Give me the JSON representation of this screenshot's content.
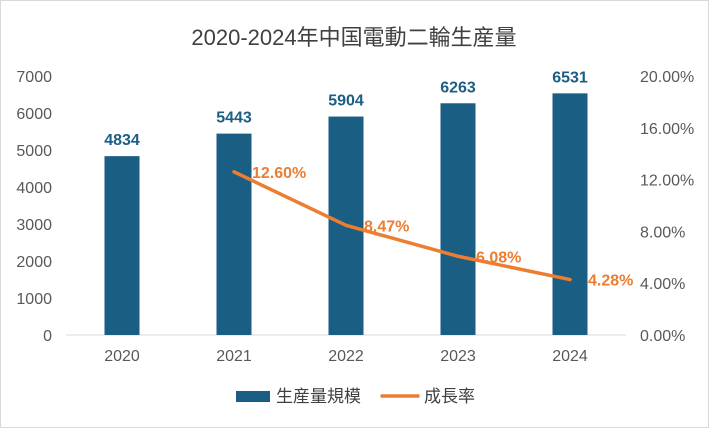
{
  "chart_data": {
    "type": "bar",
    "title": "2020-2024年中国電動二輪生産量",
    "categories": [
      "2020",
      "2021",
      "2022",
      "2023",
      "2024"
    ],
    "series": [
      {
        "name": "生産量規模",
        "type": "bar",
        "axis": "left",
        "color": "#1B5E84",
        "values": [
          4834,
          5443,
          5904,
          6263,
          6531
        ]
      },
      {
        "name": "成長率",
        "type": "line",
        "axis": "right",
        "color": "#ED7D31",
        "values": [
          null,
          12.6,
          8.47,
          6.08,
          4.28
        ]
      }
    ],
    "y_left": {
      "min": 0,
      "max": 7000,
      "tick_values": [
        0,
        1000,
        2000,
        3000,
        4000,
        5000,
        6000,
        7000
      ],
      "tick_labels": [
        "0",
        "1000",
        "2000",
        "3000",
        "4000",
        "5000",
        "6000",
        "7000"
      ]
    },
    "y_right": {
      "min": 0,
      "max": 20,
      "tick_values": [
        0,
        4,
        8,
        12,
        16,
        20
      ],
      "tick_labels": [
        "0.00%",
        "4.00%",
        "8.00%",
        "12.00%",
        "16.00%",
        "20.00%"
      ]
    },
    "grid": false,
    "legend_position": "bottom"
  }
}
